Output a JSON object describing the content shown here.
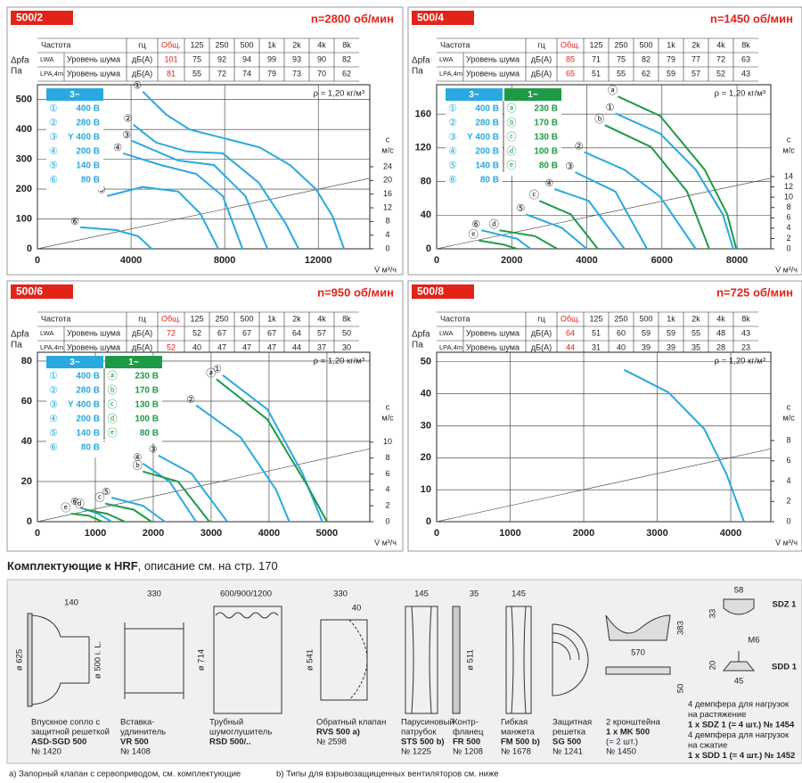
{
  "chart_data": [
    {
      "type": "line",
      "title": "500/2",
      "subtitle": "n=2800 об/мин",
      "table": {
        "header": [
          "Частота",
          "гц",
          "Общ.",
          "125",
          "250",
          "500",
          "1k",
          "2k",
          "4k",
          "8k"
        ],
        "rows": [
          [
            "LWA",
            "Уровень шума",
            "дБ(A)",
            101,
            75,
            92,
            94,
            99,
            93,
            90,
            82
          ],
          [
            "LPA,4m",
            "Уровень шума",
            "дБ(A)",
            81,
            55,
            72,
            74,
            79,
            73,
            70,
            62
          ]
        ]
      },
      "y_label": [
        "Δpfa",
        "Па"
      ],
      "y2_label": [
        "c",
        "м/с"
      ],
      "x_label": "V̇ м³/ч",
      "annotation": "ρ = 1,20 кг/м³",
      "xlim": [
        0,
        14200
      ],
      "xticks": [
        0,
        4000,
        8000,
        12000
      ],
      "ylim": [
        0,
        550
      ],
      "yticks": [
        0,
        100,
        200,
        300,
        400,
        500
      ],
      "y2lim": [
        0,
        48
      ],
      "y2ticks": [
        0,
        4,
        8,
        12,
        16,
        20,
        24
      ],
      "grid": true,
      "legend_groups": [
        {
          "title": "3~",
          "color": "#29a9e0"
        }
      ],
      "series": [
        {
          "name": "①",
          "label": "400 В",
          "group": 0,
          "color": "#29a9e0",
          "x": [
            4500,
            5500,
            6500,
            8000,
            9500,
            10800,
            11900,
            12600,
            13100
          ],
          "values": [
            527,
            450,
            400,
            370,
            340,
            280,
            200,
            110,
            0
          ]
        },
        {
          "name": "②",
          "label": "280 В",
          "group": 0,
          "color": "#29a9e0",
          "x": [
            4100,
            5070,
            6400,
            7920,
            9450,
            10590,
            11160
          ],
          "values": [
            416,
            356,
            326,
            320,
            222,
            87,
            0
          ]
        },
        {
          "name": "③",
          "label": "Y 400 В",
          "group": 0,
          "color": "#29a9e0",
          "x": [
            4040,
            6020,
            7540,
            8880,
            9830
          ],
          "values": [
            362,
            296,
            281,
            177,
            0
          ]
        },
        {
          "name": "④",
          "label": "200 В",
          "group": 0,
          "color": "#29a9e0",
          "x": [
            3660,
            5260,
            6780,
            7920,
            8760
          ],
          "values": [
            320,
            281,
            251,
            177,
            0
          ]
        },
        {
          "name": "⑤",
          "label": "140 В",
          "group": 0,
          "color": "#29a9e0",
          "x": [
            2970,
            4500,
            6020,
            6970,
            7730
          ],
          "values": [
            177,
            207,
            192,
            117,
            0
          ]
        },
        {
          "name": "⑥",
          "label": "80 В",
          "group": 0,
          "color": "#29a9e0",
          "x": [
            1830,
            3350,
            4300,
            4880
          ],
          "values": [
            72,
            63,
            42,
            0
          ]
        }
      ]
    },
    {
      "type": "line",
      "title": "500/4",
      "subtitle": "n=1450 об/мин",
      "table": {
        "header": [
          "Частота",
          "гц",
          "Общ.",
          "125",
          "250",
          "500",
          "1k",
          "2k",
          "4k",
          "8k"
        ],
        "rows": [
          [
            "LWA",
            "Уровень шума",
            "дБ(A)",
            85,
            71,
            75,
            82,
            79,
            77,
            72,
            63
          ],
          [
            "LPA,4m",
            "Уровень шума",
            "дБ(A)",
            65,
            51,
            55,
            62,
            59,
            57,
            52,
            43
          ]
        ]
      },
      "y_label": [
        "Δpfa",
        "Па"
      ],
      "y2_label": [
        "c",
        "м/с"
      ],
      "x_label": "V̇ м³/ч",
      "annotation": "ρ = 1,20 кг/м³",
      "xlim": [
        0,
        8900
      ],
      "xticks": [
        0,
        2000,
        4000,
        6000,
        8000
      ],
      "ylim": [
        0,
        195
      ],
      "yticks": [
        0,
        40,
        80,
        120,
        160
      ],
      "y2lim": [
        0,
        31.8
      ],
      "y2ticks": [
        0,
        2,
        4,
        6,
        8,
        10,
        12,
        14
      ],
      "grid": true,
      "legend_groups": [
        {
          "title": "3~",
          "color": "#29a9e0"
        },
        {
          "title": "1~",
          "color": "#1e9a46"
        }
      ],
      "series": [
        {
          "name": "①",
          "label": "400 В",
          "group": 0,
          "color": "#29a9e0",
          "x": [
            4760,
            5950,
            6900,
            7620,
            7900
          ],
          "values": [
            161,
            137,
            94,
            41,
            0
          ]
        },
        {
          "name": "②",
          "label": "280 В",
          "group": 0,
          "color": "#29a9e0",
          "x": [
            3930,
            5000,
            5950,
            6900
          ],
          "values": [
            115,
            94,
            62,
            0
          ]
        },
        {
          "name": "③",
          "label": "Y 400 В",
          "group": 0,
          "color": "#29a9e0",
          "x": [
            3690,
            4760,
            5600
          ],
          "values": [
            91,
            68,
            0
          ]
        },
        {
          "name": "④",
          "label": "200 В",
          "group": 0,
          "color": "#29a9e0",
          "x": [
            3140,
            4050,
            5000
          ],
          "values": [
            71,
            57,
            0
          ]
        },
        {
          "name": "⑤",
          "label": "140 В",
          "group": 0,
          "color": "#29a9e0",
          "x": [
            2380,
            3330,
            4000
          ],
          "values": [
            41,
            25,
            0
          ]
        },
        {
          "name": "⑥",
          "label": "80 В",
          "group": 0,
          "color": "#29a9e0",
          "x": [
            1190,
            2140,
            2500
          ],
          "values": [
            22,
            12,
            0
          ]
        },
        {
          "name": "ⓐ",
          "label": "230 В",
          "group": 1,
          "color": "#1e9a46",
          "x": [
            4830,
            5950,
            7140,
            7740,
            7980
          ],
          "values": [
            181,
            158,
            94,
            41,
            0
          ]
        },
        {
          "name": "ⓑ",
          "label": "170 В",
          "group": 1,
          "color": "#1e9a46",
          "x": [
            4480,
            5710,
            6670,
            7260
          ],
          "values": [
            147,
            121,
            68,
            0
          ]
        },
        {
          "name": "ⓒ",
          "label": "130 В",
          "group": 1,
          "color": "#1e9a46",
          "x": [
            2740,
            3570,
            4290
          ],
          "values": [
            57,
            41,
            0
          ]
        },
        {
          "name": "ⓓ",
          "label": "100 В",
          "group": 1,
          "color": "#1e9a46",
          "x": [
            1670,
            2620,
            3210
          ],
          "values": [
            22,
            15,
            0
          ]
        },
        {
          "name": "ⓔ",
          "label": "80 В",
          "group": 1,
          "color": "#1e9a46",
          "x": [
            1120,
            1790,
            2140
          ],
          "values": [
            10,
            5,
            0
          ]
        }
      ]
    },
    {
      "type": "line",
      "title": "500/6",
      "subtitle": "n=950 об/мин",
      "table": {
        "header": [
          "Частота",
          "гц",
          "Общ.",
          "125",
          "250",
          "500",
          "1k",
          "2k",
          "4k",
          "8k"
        ],
        "rows": [
          [
            "LWA",
            "Уровень шума",
            "дБ(A)",
            72,
            52,
            67,
            67,
            67,
            64,
            57,
            50
          ],
          [
            "LPA,4m",
            "Уровень шума",
            "дБ(A)",
            52,
            40,
            47,
            47,
            47,
            44,
            37,
            30
          ]
        ]
      },
      "y_label": [
        "Δpfa",
        "Па"
      ],
      "y2_label": [
        "c",
        "м/с"
      ],
      "x_label": "V̇ м³/ч",
      "annotation": "ρ = 1,20 кг/м³",
      "xlim": [
        0,
        5740
      ],
      "xticks": [
        0,
        1000,
        2000,
        3000,
        4000,
        5000
      ],
      "ylim": [
        0,
        84.4
      ],
      "yticks": [
        0,
        20,
        40,
        60,
        80
      ],
      "y2lim": [
        0,
        21.3
      ],
      "y2ticks": [
        0,
        2,
        4,
        6,
        8,
        10
      ],
      "grid": true,
      "legend_groups": [
        {
          "title": "3~",
          "color": "#29a9e0"
        },
        {
          "title": "1~",
          "color": "#1e9a46"
        }
      ],
      "series": [
        {
          "name": "①",
          "label": "400 В",
          "group": 0,
          "color": "#29a9e0",
          "x": [
            3200,
            3970,
            4580,
            4920
          ],
          "values": [
            73,
            56,
            24,
            0
          ]
        },
        {
          "name": "②",
          "label": "280 В",
          "group": 0,
          "color": "#29a9e0",
          "x": [
            2740,
            3510,
            4120,
            4350
          ],
          "values": [
            58,
            42,
            16,
            0
          ]
        },
        {
          "name": "③",
          "label": "Y 400 В",
          "group": 0,
          "color": "#29a9e0",
          "x": [
            2090,
            2660,
            3280
          ],
          "values": [
            33,
            24,
            0
          ]
        },
        {
          "name": "④",
          "label": "200 В",
          "group": 0,
          "color": "#29a9e0",
          "x": [
            1820,
            2280,
            2740
          ],
          "values": [
            29,
            20,
            0
          ]
        },
        {
          "name": "⑤",
          "label": "140 В",
          "group": 0,
          "color": "#29a9e0",
          "x": [
            1280,
            1820,
            2200
          ],
          "values": [
            12,
            8,
            0
          ]
        },
        {
          "name": "⑥",
          "label": "80 В",
          "group": 0,
          "color": "#29a9e0",
          "x": [
            740,
            1050,
            1280
          ],
          "values": [
            7,
            4,
            0
          ]
        },
        {
          "name": "ⓐ",
          "label": "230 В",
          "group": 1,
          "color": "#1e9a46",
          "x": [
            3090,
            3970,
            4660,
            5000
          ],
          "values": [
            71,
            51,
            18,
            0
          ]
        },
        {
          "name": "ⓑ",
          "label": "170 В",
          "group": 1,
          "color": "#1e9a46",
          "x": [
            1820,
            2430,
            2970
          ],
          "values": [
            25,
            20,
            0
          ]
        },
        {
          "name": "ⓒ",
          "label": "130 В",
          "group": 1,
          "color": "#1e9a46",
          "x": [
            1170,
            1660,
            1970
          ],
          "values": [
            9,
            6,
            0
          ]
        },
        {
          "name": "ⓓ",
          "label": "100 В",
          "group": 1,
          "color": "#1e9a46",
          "x": [
            820,
            1200,
            1510
          ],
          "values": [
            6,
            4,
            0
          ]
        },
        {
          "name": "ⓔ",
          "label": "80 В",
          "group": 1,
          "color": "#1e9a46",
          "x": [
            580,
            890,
            1120
          ],
          "values": [
            4,
            3,
            0
          ]
        }
      ]
    },
    {
      "type": "line",
      "title": "500/8",
      "subtitle": "n=725 об/мин",
      "table": {
        "header": [
          "Частота",
          "гц",
          "Общ.",
          "125",
          "250",
          "500",
          "1k",
          "2k",
          "4k",
          "8k"
        ],
        "rows": [
          [
            "LWA",
            "Уровень шума",
            "дБ(A)",
            64,
            51,
            60,
            59,
            59,
            55,
            48,
            43
          ],
          [
            "LPA,4m",
            "Уровень шума",
            "дБ(A)",
            44,
            31,
            40,
            39,
            39,
            35,
            28,
            23
          ]
        ]
      },
      "y_label": [
        "Δpfa",
        "Па"
      ],
      "y2_label": [
        "c",
        "м/с"
      ],
      "x_label": "V̇ м³/ч",
      "annotation": "ρ = 1,20 кг/м³",
      "xlim": [
        0,
        4545
      ],
      "xticks": [
        0,
        1000,
        2000,
        3000,
        4000
      ],
      "ylim": [
        0,
        53
      ],
      "yticks": [
        0,
        10,
        20,
        30,
        40,
        50
      ],
      "y2lim": [
        0,
        16.7
      ],
      "y2ticks": [
        0,
        2,
        4,
        6,
        8
      ],
      "grid": true,
      "series": [
        {
          "color": "#29a9e0",
          "x": [
            2550,
            3150,
            3640,
            3940,
            4180
          ],
          "values": [
            47.5,
            40.5,
            29,
            15,
            0
          ]
        }
      ]
    }
  ],
  "accessories": {
    "title": "Комплектующие к HRF",
    "title_rest": ", описание см. на стр. 170",
    "items": [
      {
        "caption": [
          "Впускное сопло с",
          "защитной решеткой"
        ],
        "code": "ASD-SGD 500",
        "number": "№ 1420",
        "dims": [
          140,
          "ø 625",
          "ø 500 i. L."
        ]
      },
      {
        "caption": [
          "Вставка-",
          "удлинитель"
        ],
        "code": "VR 500",
        "number": "№ 1408",
        "dims": [
          330
        ]
      },
      {
        "caption": [
          "Трубный",
          "шумоглушитель"
        ],
        "code": "RSD 500/..",
        "dims": [
          "600/900/1200",
          "ø 714"
        ]
      },
      {
        "caption": [
          "Обратный клапан"
        ],
        "code": "RVS 500 a)",
        "number": "№ 2598",
        "dims": [
          330,
          40,
          "ø 541"
        ]
      },
      {
        "caption": [
          "Парусиновый",
          "патрубок"
        ],
        "code": "STS 500 b)",
        "number": "№ 1225",
        "dims": [
          145
        ]
      },
      {
        "caption": [
          "Контр-",
          "фланец"
        ],
        "code": "FR 500",
        "number": "№ 1208",
        "dims": [
          35,
          "ø 511"
        ]
      },
      {
        "caption": [
          "Гибкая",
          "манжета"
        ],
        "code": "FM 500 b)",
        "number": "№ 1678",
        "dims": [
          145
        ]
      },
      {
        "caption": [
          "Защитная",
          "решетка"
        ],
        "code": "SG 500",
        "number": "№ 1241"
      },
      {
        "caption": [
          "2 кронштейна"
        ],
        "code": "1 x MK 500",
        "extra": "(= 2 шт.)",
        "number": "№ 1450",
        "dims": [
          383,
          570,
          50
        ]
      },
      {
        "labels": [
          "SDZ 1",
          "SDD 1"
        ],
        "dims": [
          58,
          33,
          "M6",
          20,
          45
        ],
        "notes": [
          "4 демпфера для нагрузок",
          "на растяжение",
          "1 x SDZ 1 (= 4 шт.) № 1454",
          "4 демпфера для нагрузок",
          "на сжатие",
          "1 x SDD 1 (= 4 шт.) № 1452"
        ]
      }
    ],
    "footnotes": [
      "a) Запорный клапан с сервоприводом, см. комплектующие",
      "b) Типы для взрывозащищенных вентиляторов см. ниже"
    ]
  }
}
